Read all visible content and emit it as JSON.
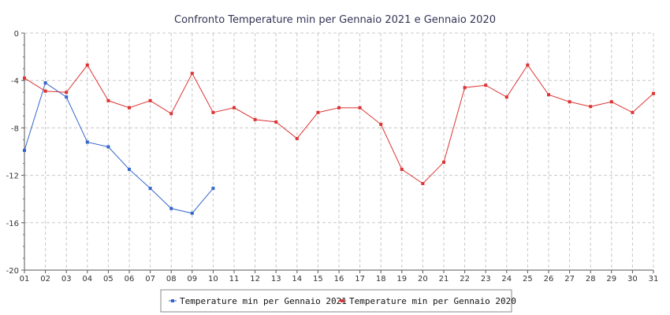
{
  "chart_data": {
    "type": "line",
    "title": "Confronto Temperature min per Gennaio 2021 e Gennaio 2020",
    "xlabel": "",
    "ylabel": "",
    "categories": [
      "01",
      "02",
      "03",
      "04",
      "05",
      "06",
      "07",
      "08",
      "09",
      "10",
      "11",
      "12",
      "13",
      "14",
      "15",
      "16",
      "17",
      "18",
      "19",
      "20",
      "21",
      "22",
      "23",
      "24",
      "25",
      "26",
      "27",
      "28",
      "29",
      "30",
      "31"
    ],
    "ylim": [
      -20,
      0
    ],
    "yticks": [
      0,
      -4,
      -8,
      -12,
      -16,
      -20
    ],
    "ytick_labels": [
      "0",
      "-4",
      "-8",
      "-12",
      "-16",
      "-20"
    ],
    "grid": true,
    "legend_position": "bottom",
    "series": [
      {
        "name": "Temperature min per Gennaio 2021",
        "color": "#3366cc",
        "marker": "square",
        "values": [
          -9.9,
          -4.2,
          -5.4,
          -9.2,
          -9.6,
          -11.5,
          -13.1,
          -14.8,
          -15.2,
          -13.1,
          null,
          null,
          null,
          null,
          null,
          null,
          null,
          null,
          null,
          null,
          null,
          null,
          null,
          null,
          null,
          null,
          null,
          null,
          null,
          null,
          null
        ]
      },
      {
        "name": "Temperature min per Gennaio 2020",
        "color": "#dd3333",
        "marker": "square",
        "values": [
          -3.8,
          -4.9,
          -5.0,
          -2.7,
          -5.7,
          -6.3,
          -5.7,
          -6.8,
          -3.4,
          -6.7,
          -6.3,
          -7.3,
          -7.5,
          -8.9,
          -6.7,
          -6.3,
          -6.3,
          -7.7,
          -11.5,
          -12.7,
          -10.9,
          -4.6,
          -4.4,
          -5.4,
          -2.7,
          -5.2,
          -5.8,
          -6.2,
          -5.8,
          -6.7,
          -5.1
        ]
      }
    ]
  }
}
